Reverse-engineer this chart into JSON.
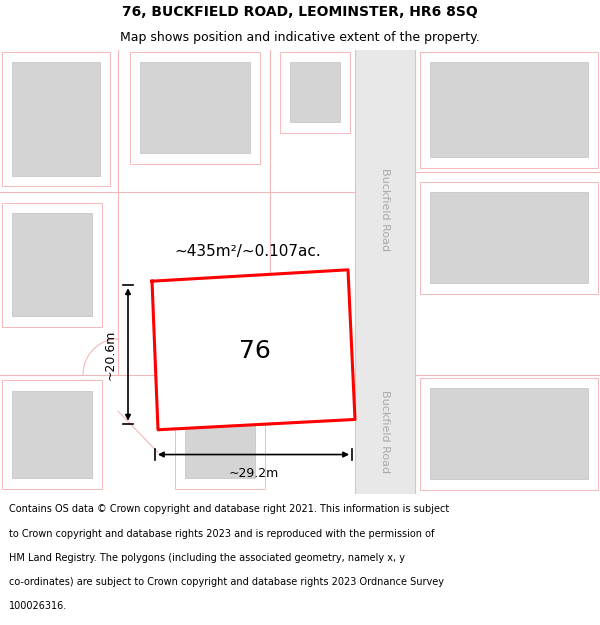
{
  "title_line1": "76, BUCKFIELD ROAD, LEOMINSTER, HR6 8SQ",
  "title_line2": "Map shows position and indicative extent of the property.",
  "footer_text": "Contains OS data © Crown copyright and database right 2021. This information is subject to Crown copyright and database rights 2023 and is reproduced with the permission of HM Land Registry. The polygons (including the associated geometry, namely x, y co-ordinates) are subject to Crown copyright and database rights 2023 Ordnance Survey 100026316.",
  "bg_color": "#ffffff",
  "map_bg": "#f5f5f5",
  "road_line_color": "#f5b8b8",
  "plot_color": "#ff0000",
  "building_fill": "#d4d4d4",
  "building_edge": "#c0c0c0",
  "area_label": "~435m²/~0.107ac.",
  "width_label": "~29.2m",
  "height_label": "~20.6m",
  "number_label": "76",
  "road_name": "Buckfield Road"
}
